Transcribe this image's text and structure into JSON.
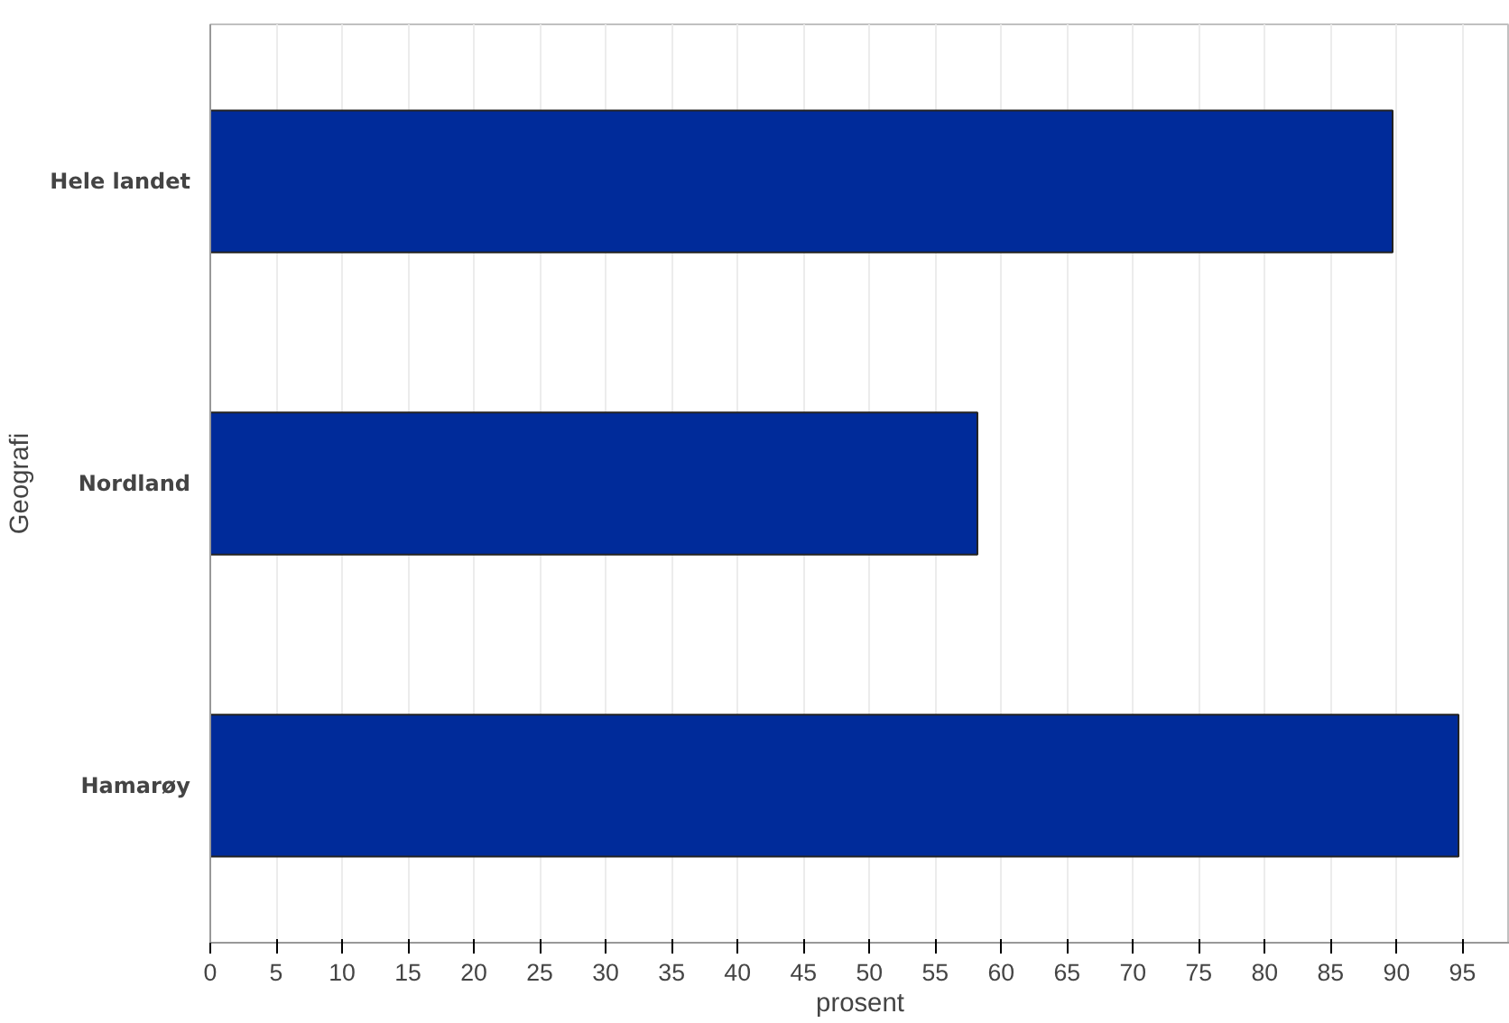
{
  "chart_data": {
    "type": "bar",
    "orientation": "horizontal",
    "ylabel": "Geografi",
    "xlabel": "prosent",
    "categories": [
      "Hele landet",
      "Nordland",
      "Hamarøy"
    ],
    "values": [
      89.7,
      58.2,
      94.7
    ],
    "color": "#002b9a",
    "xlim": [
      0,
      98.6
    ],
    "xticks": [
      0,
      5,
      10,
      15,
      20,
      25,
      30,
      35,
      40,
      45,
      50,
      55,
      60,
      65,
      70,
      75,
      80,
      85,
      90,
      95
    ],
    "grid": "x"
  }
}
